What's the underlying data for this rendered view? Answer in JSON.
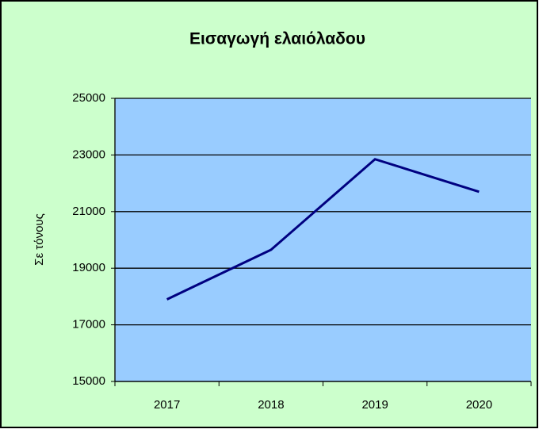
{
  "chart_data": {
    "type": "line",
    "title": "Εισαγωγή ελαιόλαδου",
    "y_label": "Σε τόνους",
    "categories": [
      "2017",
      "2018",
      "2019",
      "2020"
    ],
    "series": [
      {
        "name": "Εισαγωγή",
        "color": "#000080",
        "values": [
          17900,
          19650,
          22850,
          21700
        ]
      }
    ],
    "ylim": [
      15000,
      25000
    ],
    "yticks": [
      15000,
      17000,
      19000,
      21000,
      23000,
      25000
    ],
    "grid": true,
    "plot_color": "#99ccff",
    "background": "#ccffcc"
  }
}
